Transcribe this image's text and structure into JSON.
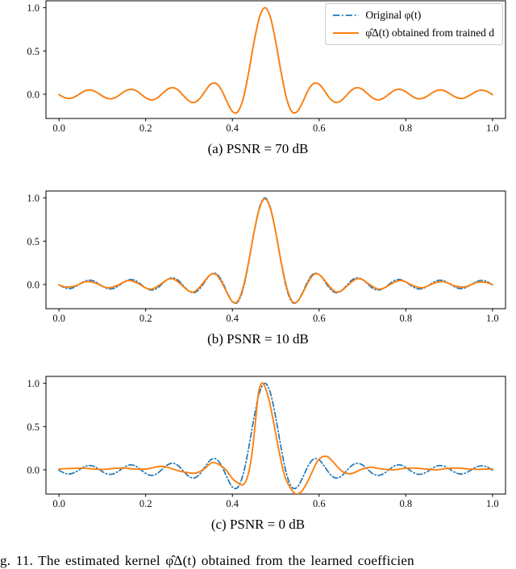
{
  "figure": {
    "caption": "g. 11.  The estimated kernel φ̂Δ(t) obtained from the learned coefficien"
  },
  "legend": {
    "entries": [
      {
        "label": "Original φ(t)",
        "color": "#1f77b4",
        "style": "dashdot"
      },
      {
        "label": "φ̂Δ(t) obtained from trained d",
        "color": "#ff7f0e",
        "style": "solid"
      }
    ]
  },
  "colors": {
    "original": "#1f77b4",
    "estimated": "#ff7f0e",
    "axes": "#000000",
    "legend_border": "#cccccc"
  },
  "original_kernel": {
    "x": [
      0,
      0.0125,
      0.025,
      0.0375,
      0.05,
      0.0625,
      0.075,
      0.0875,
      0.1,
      0.1125,
      0.125,
      0.1375,
      0.15,
      0.1625,
      0.175,
      0.1875,
      0.2,
      0.2125,
      0.225,
      0.2375,
      0.25,
      0.2625,
      0.275,
      0.2875,
      0.3,
      0.3125,
      0.325,
      0.3375,
      0.35,
      0.3625,
      0.375,
      0.3875,
      0.4,
      0.4125,
      0.425,
      0.4375,
      0.45,
      0.4625,
      0.475,
      0.4875,
      0.5,
      0.5125,
      0.525,
      0.5375,
      0.55,
      0.5625,
      0.575,
      0.5875,
      0.6,
      0.6125,
      0.625,
      0.6375,
      0.65,
      0.6625,
      0.675,
      0.6875,
      0.7,
      0.7125,
      0.725,
      0.7375,
      0.75,
      0.7625,
      0.775,
      0.7875,
      0.8,
      0.8125,
      0.825,
      0.8375,
      0.85,
      0.8625,
      0.875,
      0.8875,
      0.9,
      0.9125,
      0.925,
      0.9375,
      0.95,
      0.9625,
      0.975,
      0.9875,
      1.0
    ],
    "y": [
      -0.004,
      -0.038,
      -0.048,
      -0.027,
      0.011,
      0.043,
      0.048,
      0.021,
      -0.02,
      -0.049,
      -0.048,
      -0.015,
      0.029,
      0.056,
      0.048,
      0.007,
      -0.041,
      -0.065,
      -0.048,
      0.003,
      0.056,
      0.076,
      0.048,
      -0.017,
      -0.078,
      -0.094,
      -0.048,
      0.039,
      0.115,
      0.125,
      0.048,
      -0.086,
      -0.198,
      -0.203,
      -0.048,
      0.251,
      0.605,
      0.891,
      1.0,
      0.891,
      0.605,
      0.251,
      -0.048,
      -0.203,
      -0.198,
      -0.086,
      0.048,
      0.125,
      0.115,
      0.039,
      -0.048,
      -0.094,
      -0.078,
      -0.017,
      0.048,
      0.076,
      0.056,
      0.003,
      -0.048,
      -0.065,
      -0.041,
      0.007,
      0.048,
      0.056,
      0.029,
      -0.015,
      -0.048,
      -0.049,
      -0.02,
      0.021,
      0.048,
      0.043,
      0.011,
      -0.027,
      -0.048,
      -0.038,
      -0.004,
      0.032,
      0.048,
      0.032,
      -0.004
    ]
  },
  "chart_data": [
    {
      "type": "line",
      "title": "(a) PSNR = 70 dB",
      "xlim": [
        -0.03,
        1.03
      ],
      "ylim": [
        -0.28,
        1.08
      ],
      "grid": false,
      "legend_position": "upper right",
      "xticks": {
        "values": [
          0,
          0.2,
          0.4,
          0.6,
          0.8,
          1
        ],
        "labels": [
          "0.0",
          "0.2",
          "0.4",
          "0.6",
          "0.8",
          "1.0"
        ]
      },
      "yticks": {
        "values": [
          0,
          0.5,
          1
        ],
        "labels": [
          "0.0",
          "0.5",
          "1.0"
        ]
      },
      "series": [
        {
          "key": "original",
          "name": "Original φ(t)",
          "color": "#1f77b4",
          "dash": "dashdot",
          "ref": "original_kernel"
        },
        {
          "key": "estimated",
          "name": "φ̂Δ(t) obtained from trained d",
          "color": "#ff7f0e",
          "dash": "solid",
          "ref": "original_kernel"
        }
      ]
    },
    {
      "type": "line",
      "title": "(b) PSNR = 10 dB",
      "xlim": [
        -0.03,
        1.03
      ],
      "ylim": [
        -0.28,
        1.08
      ],
      "grid": false,
      "xticks": {
        "values": [
          0,
          0.2,
          0.4,
          0.6,
          0.8,
          1
        ],
        "labels": [
          "0.0",
          "0.2",
          "0.4",
          "0.6",
          "0.8",
          "1.0"
        ]
      },
      "yticks": {
        "values": [
          0,
          0.5,
          1
        ],
        "labels": [
          "0.0",
          "0.5",
          "1.0"
        ]
      },
      "series": [
        {
          "key": "original",
          "name": "Original φ(t)",
          "color": "#1f77b4",
          "dash": "dashdot",
          "ref": "original_kernel"
        },
        {
          "key": "estimated",
          "name": "φ̂Δ(t) obtained from trained d",
          "color": "#ff7f0e",
          "dash": "solid",
          "x": "grid",
          "y": [
            -0.004,
            -0.028,
            -0.028,
            -0.017,
            0.011,
            0.033,
            0.028,
            0.011,
            -0.02,
            -0.039,
            -0.028,
            -0.005,
            0.029,
            0.046,
            0.028,
            -0.003,
            -0.041,
            -0.055,
            -0.028,
            0.013,
            0.056,
            0.066,
            0.028,
            -0.027,
            -0.078,
            -0.084,
            -0.028,
            0.049,
            0.115,
            0.115,
            0.028,
            -0.096,
            -0.198,
            -0.193,
            -0.028,
            0.261,
            0.605,
            0.881,
            0.99,
            0.881,
            0.605,
            0.261,
            -0.028,
            -0.193,
            -0.198,
            -0.096,
            0.028,
            0.115,
            0.115,
            0.049,
            -0.028,
            -0.084,
            -0.078,
            -0.027,
            0.028,
            0.066,
            0.056,
            0.013,
            -0.028,
            -0.055,
            -0.041,
            -0.003,
            0.028,
            0.046,
            0.029,
            -0.005,
            -0.028,
            -0.039,
            -0.02,
            0.011,
            0.028,
            0.033,
            0.011,
            -0.017,
            -0.028,
            -0.028,
            -0.004,
            0.022,
            0.028,
            0.022,
            -0.004
          ]
        }
      ]
    },
    {
      "type": "line",
      "title": "(c) PSNR = 0 dB",
      "xlim": [
        -0.03,
        1.03
      ],
      "ylim": [
        -0.28,
        1.08
      ],
      "grid": false,
      "xticks": {
        "values": [
          0,
          0.2,
          0.4,
          0.6,
          0.8,
          1
        ],
        "labels": [
          "0.0",
          "0.2",
          "0.4",
          "0.6",
          "0.8",
          "1.0"
        ]
      },
      "yticks": {
        "values": [
          0,
          0.5,
          1
        ],
        "labels": [
          "0.0",
          "0.5",
          "1.0"
        ]
      },
      "series": [
        {
          "key": "original",
          "name": "Original φ(t)",
          "color": "#1f77b4",
          "dash": "dashdot",
          "ref": "original_kernel"
        },
        {
          "key": "estimated",
          "name": "φ̂Δ(t) obtained from trained d",
          "color": "#ff7f0e",
          "dash": "solid",
          "x": [
            0,
            0.025,
            0.05,
            0.075,
            0.1,
            0.125,
            0.15,
            0.175,
            0.2,
            0.2125,
            0.225,
            0.2375,
            0.25,
            0.2625,
            0.275,
            0.2875,
            0.3,
            0.3125,
            0.325,
            0.3375,
            0.345,
            0.355,
            0.37,
            0.385,
            0.4,
            0.415,
            0.425,
            0.435,
            0.445,
            0.4525,
            0.46,
            0.4675,
            0.475,
            0.485,
            0.495,
            0.5075,
            0.52,
            0.5325,
            0.545,
            0.5575,
            0.57,
            0.5825,
            0.595,
            0.6075,
            0.62,
            0.6325,
            0.645,
            0.6575,
            0.67,
            0.6825,
            0.695,
            0.7075,
            0.72,
            0.7325,
            0.745,
            0.77,
            0.795,
            0.82,
            0.845,
            0.87,
            0.895,
            0.92,
            0.945,
            0.97,
            1.0
          ],
          "y": [
            0.01,
            0.015,
            0.02,
            0.012,
            0.005,
            0.015,
            0.02,
            0.01,
            0.008,
            0.02,
            0.035,
            0.04,
            0.03,
            0.01,
            -0.01,
            -0.025,
            -0.035,
            -0.04,
            -0.02,
            0.02,
            0.055,
            0.085,
            0.06,
            0.0,
            -0.1,
            -0.16,
            -0.17,
            -0.08,
            0.18,
            0.52,
            0.88,
            1.0,
            0.96,
            0.8,
            0.55,
            0.22,
            -0.06,
            -0.2,
            -0.275,
            -0.26,
            -0.17,
            -0.04,
            0.09,
            0.15,
            0.15,
            0.09,
            0.02,
            -0.03,
            -0.045,
            -0.03,
            0.0,
            0.02,
            0.03,
            0.02,
            0.01,
            0.0,
            0.015,
            0.02,
            0.01,
            0.0,
            0.015,
            0.02,
            0.01,
            0.005,
            0.01
          ]
        }
      ]
    }
  ]
}
